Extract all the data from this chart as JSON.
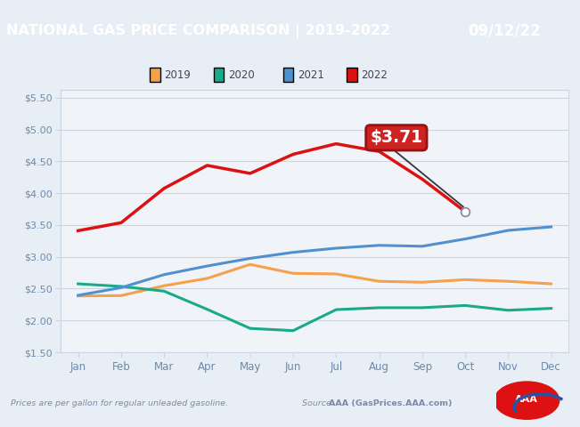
{
  "title_left": "NATIONAL GAS PRICE COMPARISON | 2019-2022",
  "title_right": "09/12/22",
  "title_bg_left": "#1b5fa5",
  "title_bg_right": "#5b9bd5",
  "title_text_color": "#ffffff",
  "chart_bg": "#e8eef5",
  "plot_bg": "#f0f4f8",
  "footer_left": "Prices are per gallon for regular unleaded gasoline.",
  "footer_source_label": "Source: ",
  "footer_source_value": "AAA (GasPrices.AAA.com)",
  "annotation_value": "$3.71",
  "annotation_color": "#cc2222",
  "annotation_dark": "#991111",
  "ylim": [
    1.5,
    5.625
  ],
  "yticks": [
    1.5,
    2.0,
    2.5,
    3.0,
    3.5,
    4.0,
    4.5,
    5.0,
    5.5
  ],
  "ytick_labels": [
    "$1.50",
    "$2.00",
    "$2.50",
    "$3.00",
    "$3.50",
    "$4.00",
    "$4.50",
    "$5.00",
    "$5.50"
  ],
  "months": [
    "Jan",
    "Feb",
    "Mar",
    "Apr",
    "May",
    "Jun",
    "Jul",
    "Aug",
    "Sep",
    "Oct",
    "Nov",
    "Dec"
  ],
  "legend": [
    {
      "label": "2019",
      "color": "#f5a04a"
    },
    {
      "label": "2020",
      "color": "#1aaa8a"
    },
    {
      "label": "2021",
      "color": "#5090d0"
    },
    {
      "label": "2022",
      "color": "#dd1111"
    }
  ],
  "series_2019": [
    2.385,
    2.39,
    2.545,
    2.66,
    2.88,
    2.74,
    2.73,
    2.615,
    2.6,
    2.64,
    2.615,
    2.575
  ],
  "series_2020": [
    2.575,
    2.535,
    2.46,
    2.175,
    1.875,
    1.84,
    2.17,
    2.2,
    2.2,
    2.235,
    2.16,
    2.19
  ],
  "series_2021": [
    2.395,
    2.515,
    2.72,
    2.855,
    2.975,
    3.07,
    3.135,
    3.18,
    3.165,
    3.28,
    3.415,
    3.47
  ],
  "series_2022": [
    3.41,
    3.535,
    4.075,
    4.435,
    4.31,
    4.61,
    4.775,
    4.655,
    4.22,
    3.71
  ],
  "grid_color": "#ccd5e0",
  "tick_color": "#6a8aaa",
  "spine_color": "#ccd5e0"
}
